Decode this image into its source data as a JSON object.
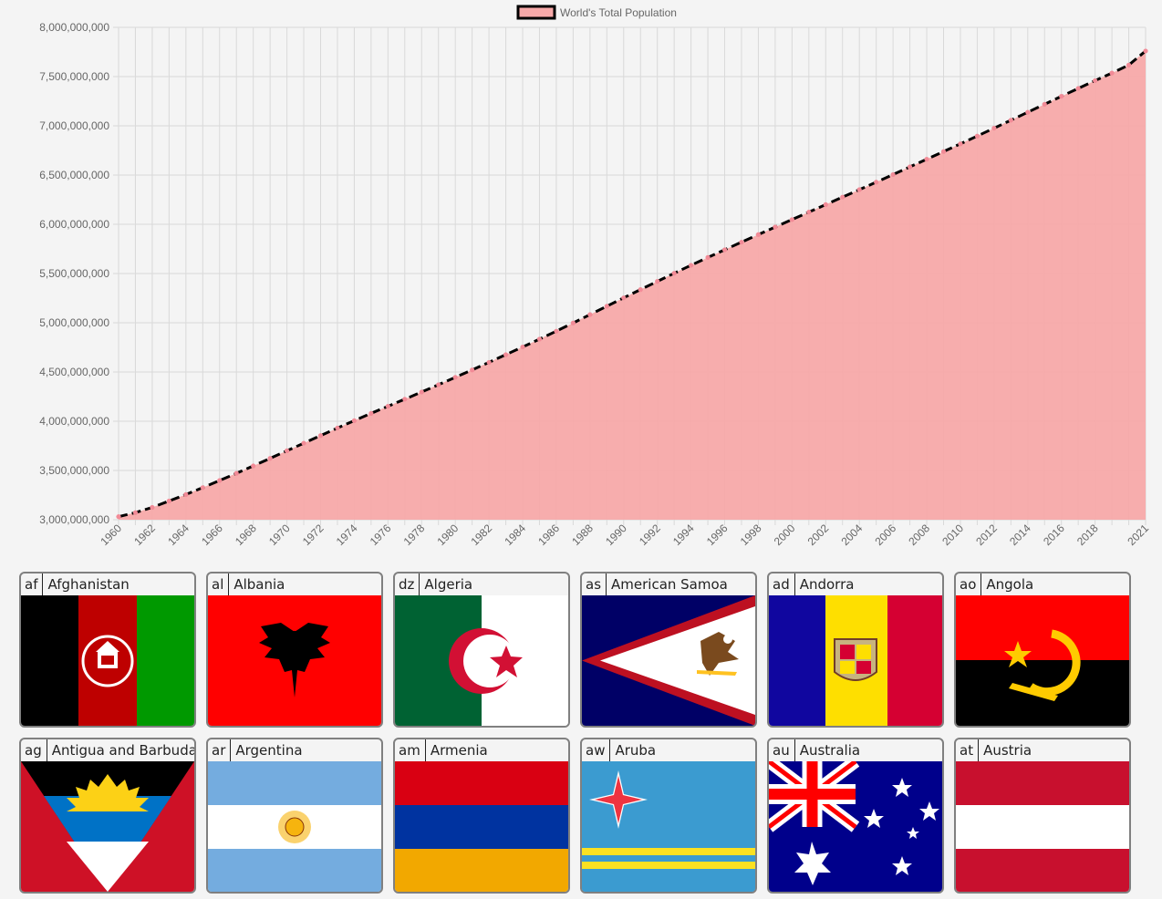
{
  "chart_data": {
    "type": "area",
    "legend_label": "World's Total Population",
    "legend_position": "top-center",
    "colors": {
      "fill": "#f7a9a9",
      "line": "#000000",
      "point": "#f28b97",
      "grid": "#d9d9d9"
    },
    "ylim": [
      3000000000,
      8000000000
    ],
    "y_ticks": [
      "3,000,000,000",
      "3,500,000,000",
      "4,000,000,000",
      "4,500,000,000",
      "5,000,000,000",
      "5,500,000,000",
      "6,000,000,000",
      "6,500,000,000",
      "7,000,000,000",
      "7,500,000,000",
      "8,000,000,000"
    ],
    "x": [
      1960,
      1961,
      1962,
      1963,
      1964,
      1965,
      1966,
      1967,
      1968,
      1969,
      1970,
      1971,
      1972,
      1973,
      1974,
      1975,
      1976,
      1977,
      1978,
      1979,
      1980,
      1981,
      1982,
      1983,
      1984,
      1985,
      1986,
      1987,
      1988,
      1989,
      1990,
      1991,
      1992,
      1993,
      1994,
      1995,
      1996,
      1997,
      1998,
      1999,
      2000,
      2001,
      2002,
      2003,
      2004,
      2005,
      2006,
      2007,
      2008,
      2009,
      2010,
      2011,
      2012,
      2013,
      2014,
      2015,
      2016,
      2017,
      2018,
      2019,
      2020,
      2021
    ],
    "x_tick_labels": [
      "1960",
      "1962",
      "1964",
      "1966",
      "1968",
      "1970",
      "1972",
      "1974",
      "1976",
      "1978",
      "1980",
      "1982",
      "1984",
      "1986",
      "1988",
      "1990",
      "1992",
      "1994",
      "1996",
      "1998",
      "2000",
      "2002",
      "2004",
      "2006",
      "2008",
      "2010",
      "2012",
      "2014",
      "2016",
      "2018",
      "2021"
    ],
    "values": [
      3031000000,
      3072000000,
      3125000000,
      3190000000,
      3256000000,
      3326000000,
      3398000000,
      3471000000,
      3546000000,
      3623000000,
      3700000000,
      3777000000,
      3854000000,
      3931000000,
      4006000000,
      4080000000,
      4152000000,
      4224000000,
      4297000000,
      4371000000,
      4446000000,
      4521000000,
      4598000000,
      4676000000,
      4754000000,
      4834000000,
      4915000000,
      4998000000,
      5083000000,
      5168000000,
      5253000000,
      5337000000,
      5420000000,
      5503000000,
      5584000000,
      5663000000,
      5741000000,
      5819000000,
      5896000000,
      5972000000,
      6048000000,
      6124000000,
      6200000000,
      6276000000,
      6352000000,
      6428000000,
      6505000000,
      6583000000,
      6661000000,
      6739000000,
      6817000000,
      6896000000,
      6976000000,
      7057000000,
      7138000000,
      7219000000,
      7300000000,
      7380000000,
      7459000000,
      7536000000,
      7617000000,
      7760000000
    ]
  },
  "countries": [
    {
      "code": "af",
      "name": "Afghanistan",
      "flag": "afghanistan-flag"
    },
    {
      "code": "al",
      "name": "Albania",
      "flag": "albania-flag"
    },
    {
      "code": "dz",
      "name": "Algeria",
      "flag": "algeria-flag"
    },
    {
      "code": "as",
      "name": "American Samoa",
      "flag": "american-samoa-flag"
    },
    {
      "code": "ad",
      "name": "Andorra",
      "flag": "andorra-flag"
    },
    {
      "code": "ao",
      "name": "Angola",
      "flag": "angola-flag"
    },
    {
      "code": "ag",
      "name": "Antigua and Barbuda",
      "flag": "antigua-barbuda-flag"
    },
    {
      "code": "ar",
      "name": "Argentina",
      "flag": "argentina-flag"
    },
    {
      "code": "am",
      "name": "Armenia",
      "flag": "armenia-flag"
    },
    {
      "code": "aw",
      "name": "Aruba",
      "flag": "aruba-flag"
    },
    {
      "code": "au",
      "name": "Australia",
      "flag": "australia-flag"
    },
    {
      "code": "at",
      "name": "Austria",
      "flag": "austria-flag"
    }
  ]
}
